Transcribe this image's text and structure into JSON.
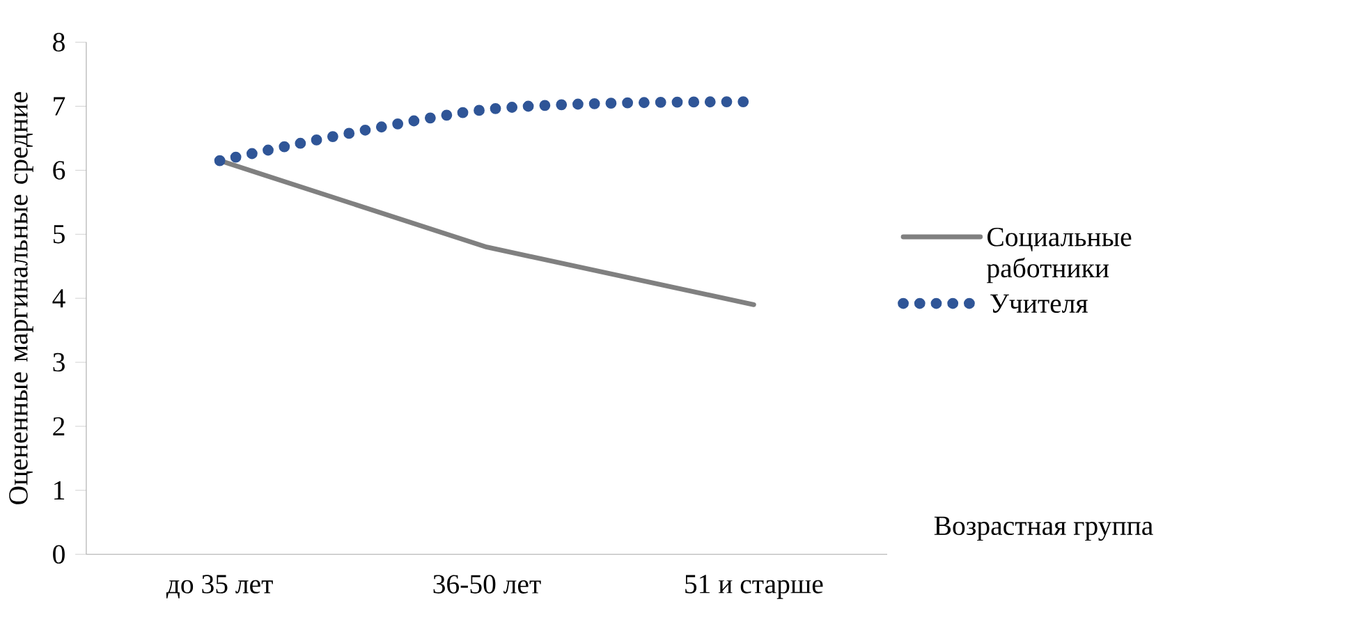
{
  "chart_data": {
    "type": "line",
    "xlabel": "Возрастная группа",
    "ylabel": "Оцененные маргинальные средние",
    "categories": [
      "до 35 лет",
      "36-50 лет",
      "51 и старше"
    ],
    "series": [
      {
        "name": "Социальные работники",
        "color": "#808080",
        "line_style": "solid",
        "values": [
          6.15,
          4.8,
          3.9
        ]
      },
      {
        "name": "Учителя",
        "color": "#2f5597",
        "line_style": "dotted",
        "values": [
          6.15,
          6.95,
          7.07
        ]
      }
    ],
    "ylim": [
      0,
      8
    ],
    "yticks": [
      0,
      1,
      2,
      3,
      4,
      5,
      6,
      7,
      8
    ],
    "grid": false,
    "legend": "right"
  }
}
